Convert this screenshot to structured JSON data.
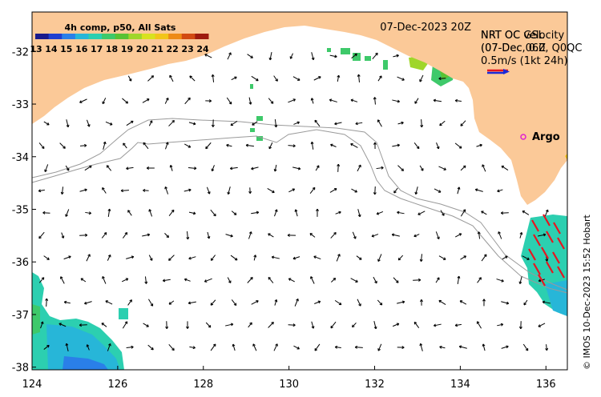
{
  "map": {
    "date_label": "07-Dec-2023 20Z",
    "colorbar": {
      "title": "4h comp, p50, All Sats",
      "ticks": [
        "13",
        "14",
        "15",
        "16",
        "17",
        "18",
        "19",
        "20",
        "21",
        "22",
        "23",
        "24"
      ],
      "colors": [
        "#1a1a8c",
        "#1f3fd0",
        "#2a7fe8",
        "#27b6d8",
        "#2ccfb0",
        "#3ec96a",
        "#59c234",
        "#9fd62a",
        "#d8e21e",
        "#f2c519",
        "#ee8a16",
        "#d24a12",
        "#9e1a0e"
      ]
    },
    "legend": {
      "line1": "NRT OC velocity",
      "line2": "(07-Dec, 0.0, Q0QC",
      "overlay1": "NRT OC GSL",
      "overlay2": "(07-Dec 06Z",
      "scale_label": "0.5m/s (1kt 24h)"
    },
    "argo_label": "Argo",
    "credit": "© IMOS 10-Dec-2023 15:52 Hobart",
    "axes": {
      "lon_ticks": [
        124,
        126,
        128,
        130,
        132,
        134,
        136
      ],
      "lat_ticks": [
        -32,
        -33,
        -34,
        -35,
        -36,
        -37,
        -38
      ],
      "lon_range": [
        124,
        136.5
      ],
      "lat_range": [
        -38.05,
        -31.25
      ]
    },
    "colors": {
      "land": "#fbc998",
      "bathy": "#9a9a9a",
      "arrow": "#000000",
      "argo": "#e020d0",
      "scale_red": "#e8141e",
      "scale_blue": "#1a2ad8"
    }
  }
}
